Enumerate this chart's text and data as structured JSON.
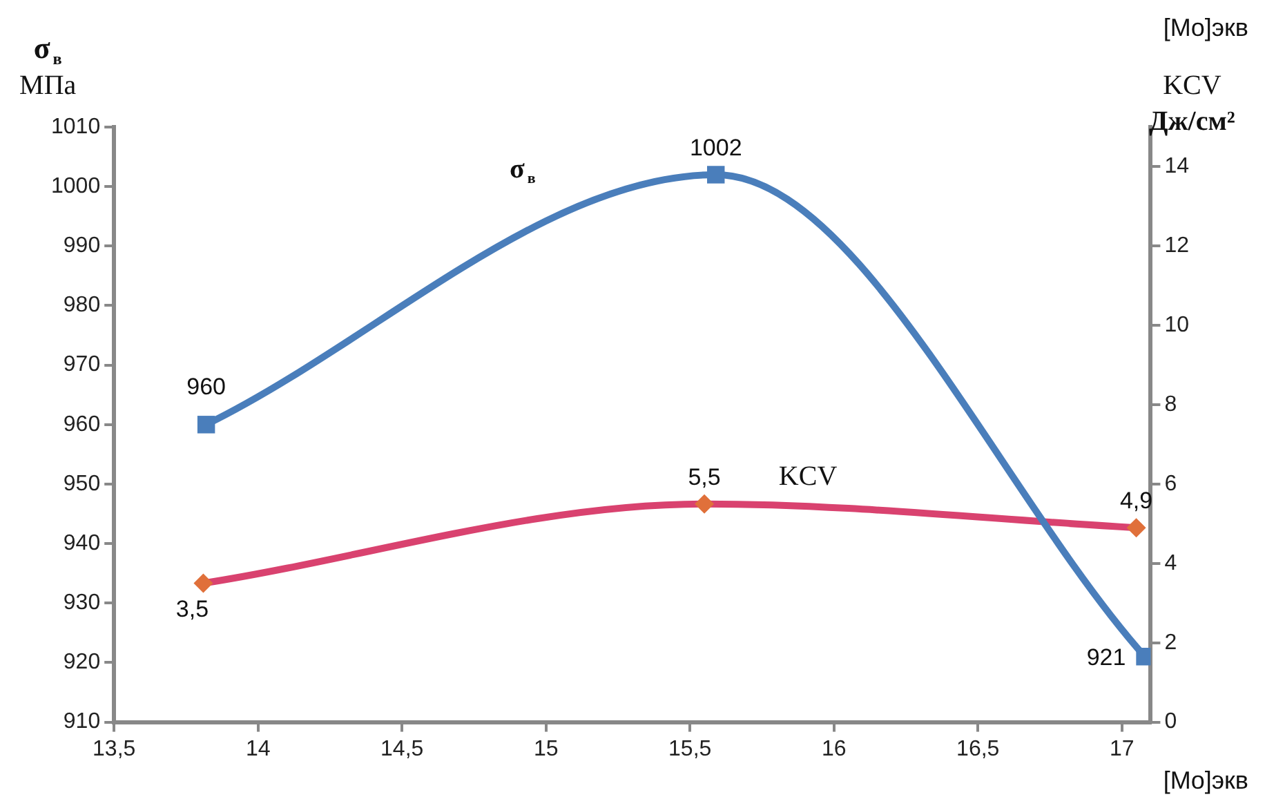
{
  "chart_data": {
    "type": "line",
    "xlabel": "[Mo]экв",
    "ylabel": "σ$_{в}$ МПа",
    "y2label": "KCV Дж/см²",
    "annotations": [
      "[Mo]экв"
    ],
    "xlim": [
      13.5,
      17.1
    ],
    "xticks": [
      {
        "value": 13.5,
        "label": "13,5"
      },
      14,
      {
        "value": 14.5,
        "label": "14,5"
      },
      15,
      {
        "value": 15.5,
        "label": "15,5"
      },
      16,
      {
        "value": 16.5,
        "label": "16,5"
      },
      17
    ],
    "ylim": [
      910,
      1010
    ],
    "yticks": [
      910,
      920,
      930,
      940,
      950,
      960,
      970,
      980,
      990,
      1000,
      1010
    ],
    "y2lim": [
      0,
      15
    ],
    "y2ticks": [
      0,
      2,
      4,
      6,
      8,
      10,
      12,
      14
    ],
    "grid": false,
    "legend": false,
    "series": [
      {
        "name": "σ$_{в}$",
        "color": "#4a7ebb",
        "marker": "square",
        "x": [
          13.82,
          15.59,
          17.08
        ],
        "values": [
          960,
          1002,
          921
        ],
        "value_labels": [
          "960",
          "1002",
          "921"
        ]
      },
      {
        "name": "KCV",
        "color": "#d9426f",
        "marker": "diamond",
        "axis": "y2",
        "x": [
          13.81,
          15.55,
          17.05
        ],
        "values": [
          3.5,
          5.5,
          4.9
        ],
        "value_labels": [
          "3,5",
          "5,5",
          "4,9"
        ]
      }
    ]
  }
}
